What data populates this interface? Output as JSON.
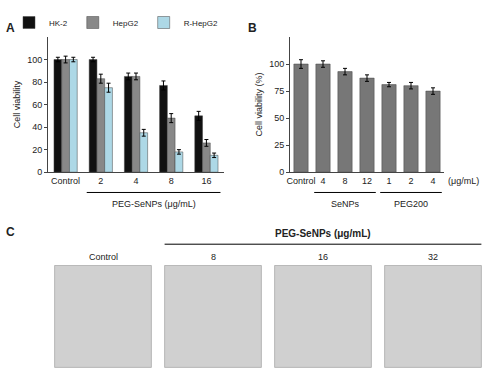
{
  "chart_data": [
    {
      "type": "bar",
      "categories": [
        "Control",
        "2",
        "4",
        "8",
        "16"
      ],
      "series": [
        {
          "name": "HK-2",
          "color": "#111111",
          "values": [
            100,
            100,
            85,
            77,
            50
          ],
          "errors": [
            2,
            2,
            3,
            4,
            4
          ]
        },
        {
          "name": "HepG2",
          "color": "#888888",
          "values": [
            100,
            83,
            85,
            48,
            26
          ],
          "errors": [
            3,
            4,
            3,
            4,
            3
          ]
        },
        {
          "name": "R-HepG2",
          "color": "#add8e6",
          "values": [
            100,
            75,
            35,
            18,
            15
          ],
          "errors": [
            2,
            4,
            3,
            2,
            2
          ]
        }
      ],
      "ylabel": "Cell viability",
      "ylim": [
        0,
        120
      ],
      "yticks": [
        0,
        20,
        40,
        60,
        80,
        100
      ],
      "grid": false,
      "legend": "upper right",
      "annotations": [
        {
          "text": "A"
        },
        {
          "text": "PEG-SeNPs (μg/mL)",
          "categories": [
            "2",
            "4",
            "8",
            "16"
          ]
        }
      ]
    },
    {
      "type": "bar",
      "categories": [
        "Control",
        "4",
        "8",
        "12",
        "1",
        "2",
        "4"
      ],
      "values": [
        100,
        100,
        93,
        87,
        81,
        80,
        75
      ],
      "errors": [
        4,
        3,
        3,
        3,
        2,
        3,
        3
      ],
      "color": "#777777",
      "ylabel": "Cell viability (%)",
      "xlabel": "(μg/mL)",
      "ylim": [
        0,
        125
      ],
      "yticks": [
        0,
        25,
        50,
        75,
        100
      ],
      "grid": false,
      "annotations": [
        {
          "text": "B"
        },
        {
          "text": "SeNPs",
          "categories": [
            "4",
            "8",
            "12"
          ]
        },
        {
          "text": "PEG200",
          "categories": [
            "1",
            "2",
            "4"
          ]
        }
      ]
    },
    {
      "type": "image_grid",
      "categories": [
        "Control",
        "8",
        "16",
        "32"
      ],
      "annotations": [
        {
          "text": "C"
        },
        {
          "text": "PEG-SeNPs (μg/mL)",
          "categories": [
            "8",
            "16",
            "32"
          ]
        }
      ]
    }
  ]
}
